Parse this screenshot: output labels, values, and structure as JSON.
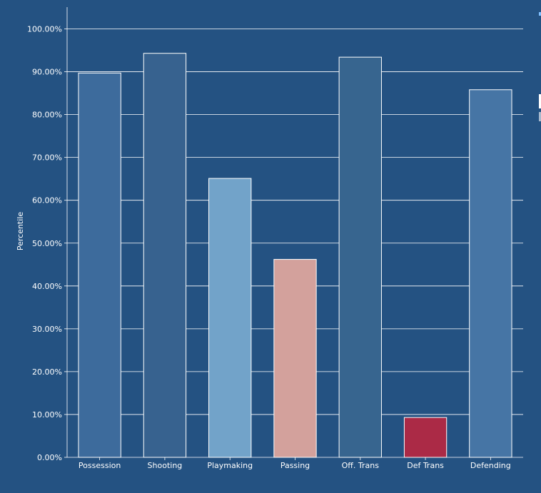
{
  "chart_data": {
    "type": "bar",
    "title": "",
    "xlabel": "",
    "ylabel": "Percentile",
    "categories": [
      "Possession",
      "Shooting",
      "Playmaking",
      "Passing",
      "Off. Trans",
      "Def Trans",
      "Defending"
    ],
    "values": [
      89.7,
      94.3,
      65.1,
      46.2,
      93.4,
      9.3,
      85.8
    ],
    "bar_colors": [
      "#3d6b9c",
      "#37628f",
      "#72a3c9",
      "#d3a19c",
      "#37658f",
      "#ab2a46",
      "#4675a5"
    ],
    "ylim": [
      0,
      100
    ],
    "yticks": [
      0,
      10,
      20,
      30,
      40,
      50,
      60,
      70,
      80,
      90,
      100
    ],
    "ytick_labels": [
      "0.00%",
      "10.00%",
      "20.00%",
      "30.00%",
      "40.00%",
      "50.00%",
      "60.00%",
      "70.00%",
      "80.00%",
      "90.00%",
      "100.00%"
    ],
    "grid": true
  },
  "colors": {
    "background": "#245282",
    "grid": "#ffffff",
    "axis": "#ffffff",
    "text": "#ffffff",
    "bar_edge": "#ffffff"
  }
}
